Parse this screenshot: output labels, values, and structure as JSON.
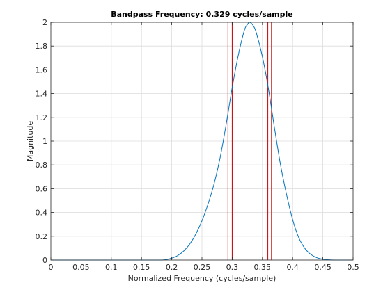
{
  "chart_data": {
    "type": "line",
    "title": "Bandpass Frequency: 0.329 cycles/sample",
    "xlabel": "Normalized Frequency (cycles/sample)",
    "ylabel": "Magnitude",
    "xlim": [
      0,
      0.5
    ],
    "ylim": [
      0,
      2
    ],
    "xticks": [
      0,
      0.05,
      0.1,
      0.15,
      0.2,
      0.25,
      0.3,
      0.35,
      0.4,
      0.45,
      0.5
    ],
    "xtick_labels": [
      "0",
      "0.05",
      "0.1",
      "0.15",
      "0.2",
      "0.25",
      "0.3",
      "0.35",
      "0.4",
      "0.45",
      "0.5"
    ],
    "yticks": [
      0,
      0.2,
      0.4,
      0.6,
      0.8,
      1,
      1.2,
      1.4,
      1.6,
      1.8,
      2
    ],
    "ytick_labels": [
      "0",
      "0.2",
      "0.4",
      "0.6",
      "0.8",
      "1",
      "1.2",
      "1.4",
      "1.6",
      "1.8",
      "2"
    ],
    "grid": true,
    "series": [
      {
        "color": "#0072bd",
        "x": [
          0,
          0.05,
          0.1,
          0.15,
          0.18,
          0.19,
          0.2,
          0.21,
          0.22,
          0.23,
          0.24,
          0.25,
          0.26,
          0.27,
          0.28,
          0.29,
          0.3,
          0.31,
          0.32,
          0.325,
          0.329,
          0.335,
          0.34,
          0.35,
          0.36,
          0.37,
          0.38,
          0.39,
          0.4,
          0.41,
          0.42,
          0.43,
          0.44,
          0.45,
          0.46,
          0.47,
          0.48,
          0.5
        ],
        "y": [
          0,
          0,
          0,
          0,
          0,
          0.003,
          0.016,
          0.038,
          0.077,
          0.136,
          0.22,
          0.33,
          0.47,
          0.64,
          0.86,
          1.14,
          1.45,
          1.72,
          1.93,
          1.98,
          2.0,
          1.97,
          1.91,
          1.71,
          1.44,
          1.11,
          0.8,
          0.55,
          0.34,
          0.19,
          0.1,
          0.048,
          0.02,
          0.007,
          0.002,
          0,
          0,
          0
        ]
      }
    ],
    "vertical_lines": {
      "color": "#c00000",
      "x": [
        0.293,
        0.3,
        0.359,
        0.365
      ]
    }
  }
}
